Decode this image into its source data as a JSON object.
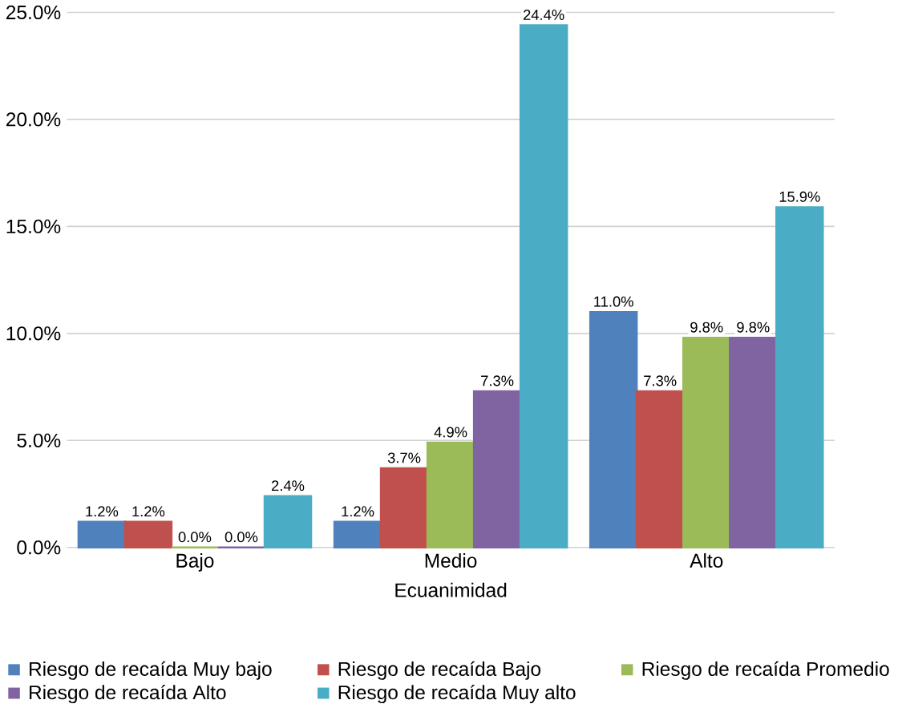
{
  "chart_data": {
    "type": "bar",
    "xlabel": "Ecuanimidad",
    "categories": [
      "Bajo",
      "Medio",
      "Alto"
    ],
    "series": [
      {
        "name": "Riesgo de recaída Muy bajo",
        "color": "#4f81bd",
        "values": [
          1.2,
          1.2,
          11.0
        ],
        "value_labels": [
          "1.2%",
          "1.2%",
          "11.0%"
        ]
      },
      {
        "name": "Riesgo de recaída Bajo",
        "color": "#c0504d",
        "values": [
          1.2,
          3.7,
          7.3
        ],
        "value_labels": [
          "1.2%",
          "3.7%",
          "7.3%"
        ]
      },
      {
        "name": "Riesgo de recaída Promedio",
        "color": "#9bbb59",
        "values": [
          0.0,
          4.9,
          9.8
        ],
        "value_labels": [
          "0.0%",
          "4.9%",
          "9.8%"
        ]
      },
      {
        "name": "Riesgo de recaída Alto",
        "color": "#8064a2",
        "values": [
          0.0,
          7.3,
          9.8
        ],
        "value_labels": [
          "0.0%",
          "7.3%",
          "9.8%"
        ]
      },
      {
        "name": "Riesgo de recaída Muy alto",
        "color": "#4bacc6",
        "values": [
          2.4,
          24.4,
          15.9
        ],
        "value_labels": [
          "2.4%",
          "24.4%",
          "15.9%"
        ]
      }
    ],
    "ylim": [
      0,
      25
    ],
    "yticks": [
      {
        "value": 0,
        "label": "0.0%"
      },
      {
        "value": 5,
        "label": "5.0%"
      },
      {
        "value": 10,
        "label": "10.0%"
      },
      {
        "value": 15,
        "label": "15.0%"
      },
      {
        "value": 20,
        "label": "20.0%"
      },
      {
        "value": 25,
        "label": "25.0%"
      }
    ],
    "grid": "y",
    "legend": "bottom"
  }
}
